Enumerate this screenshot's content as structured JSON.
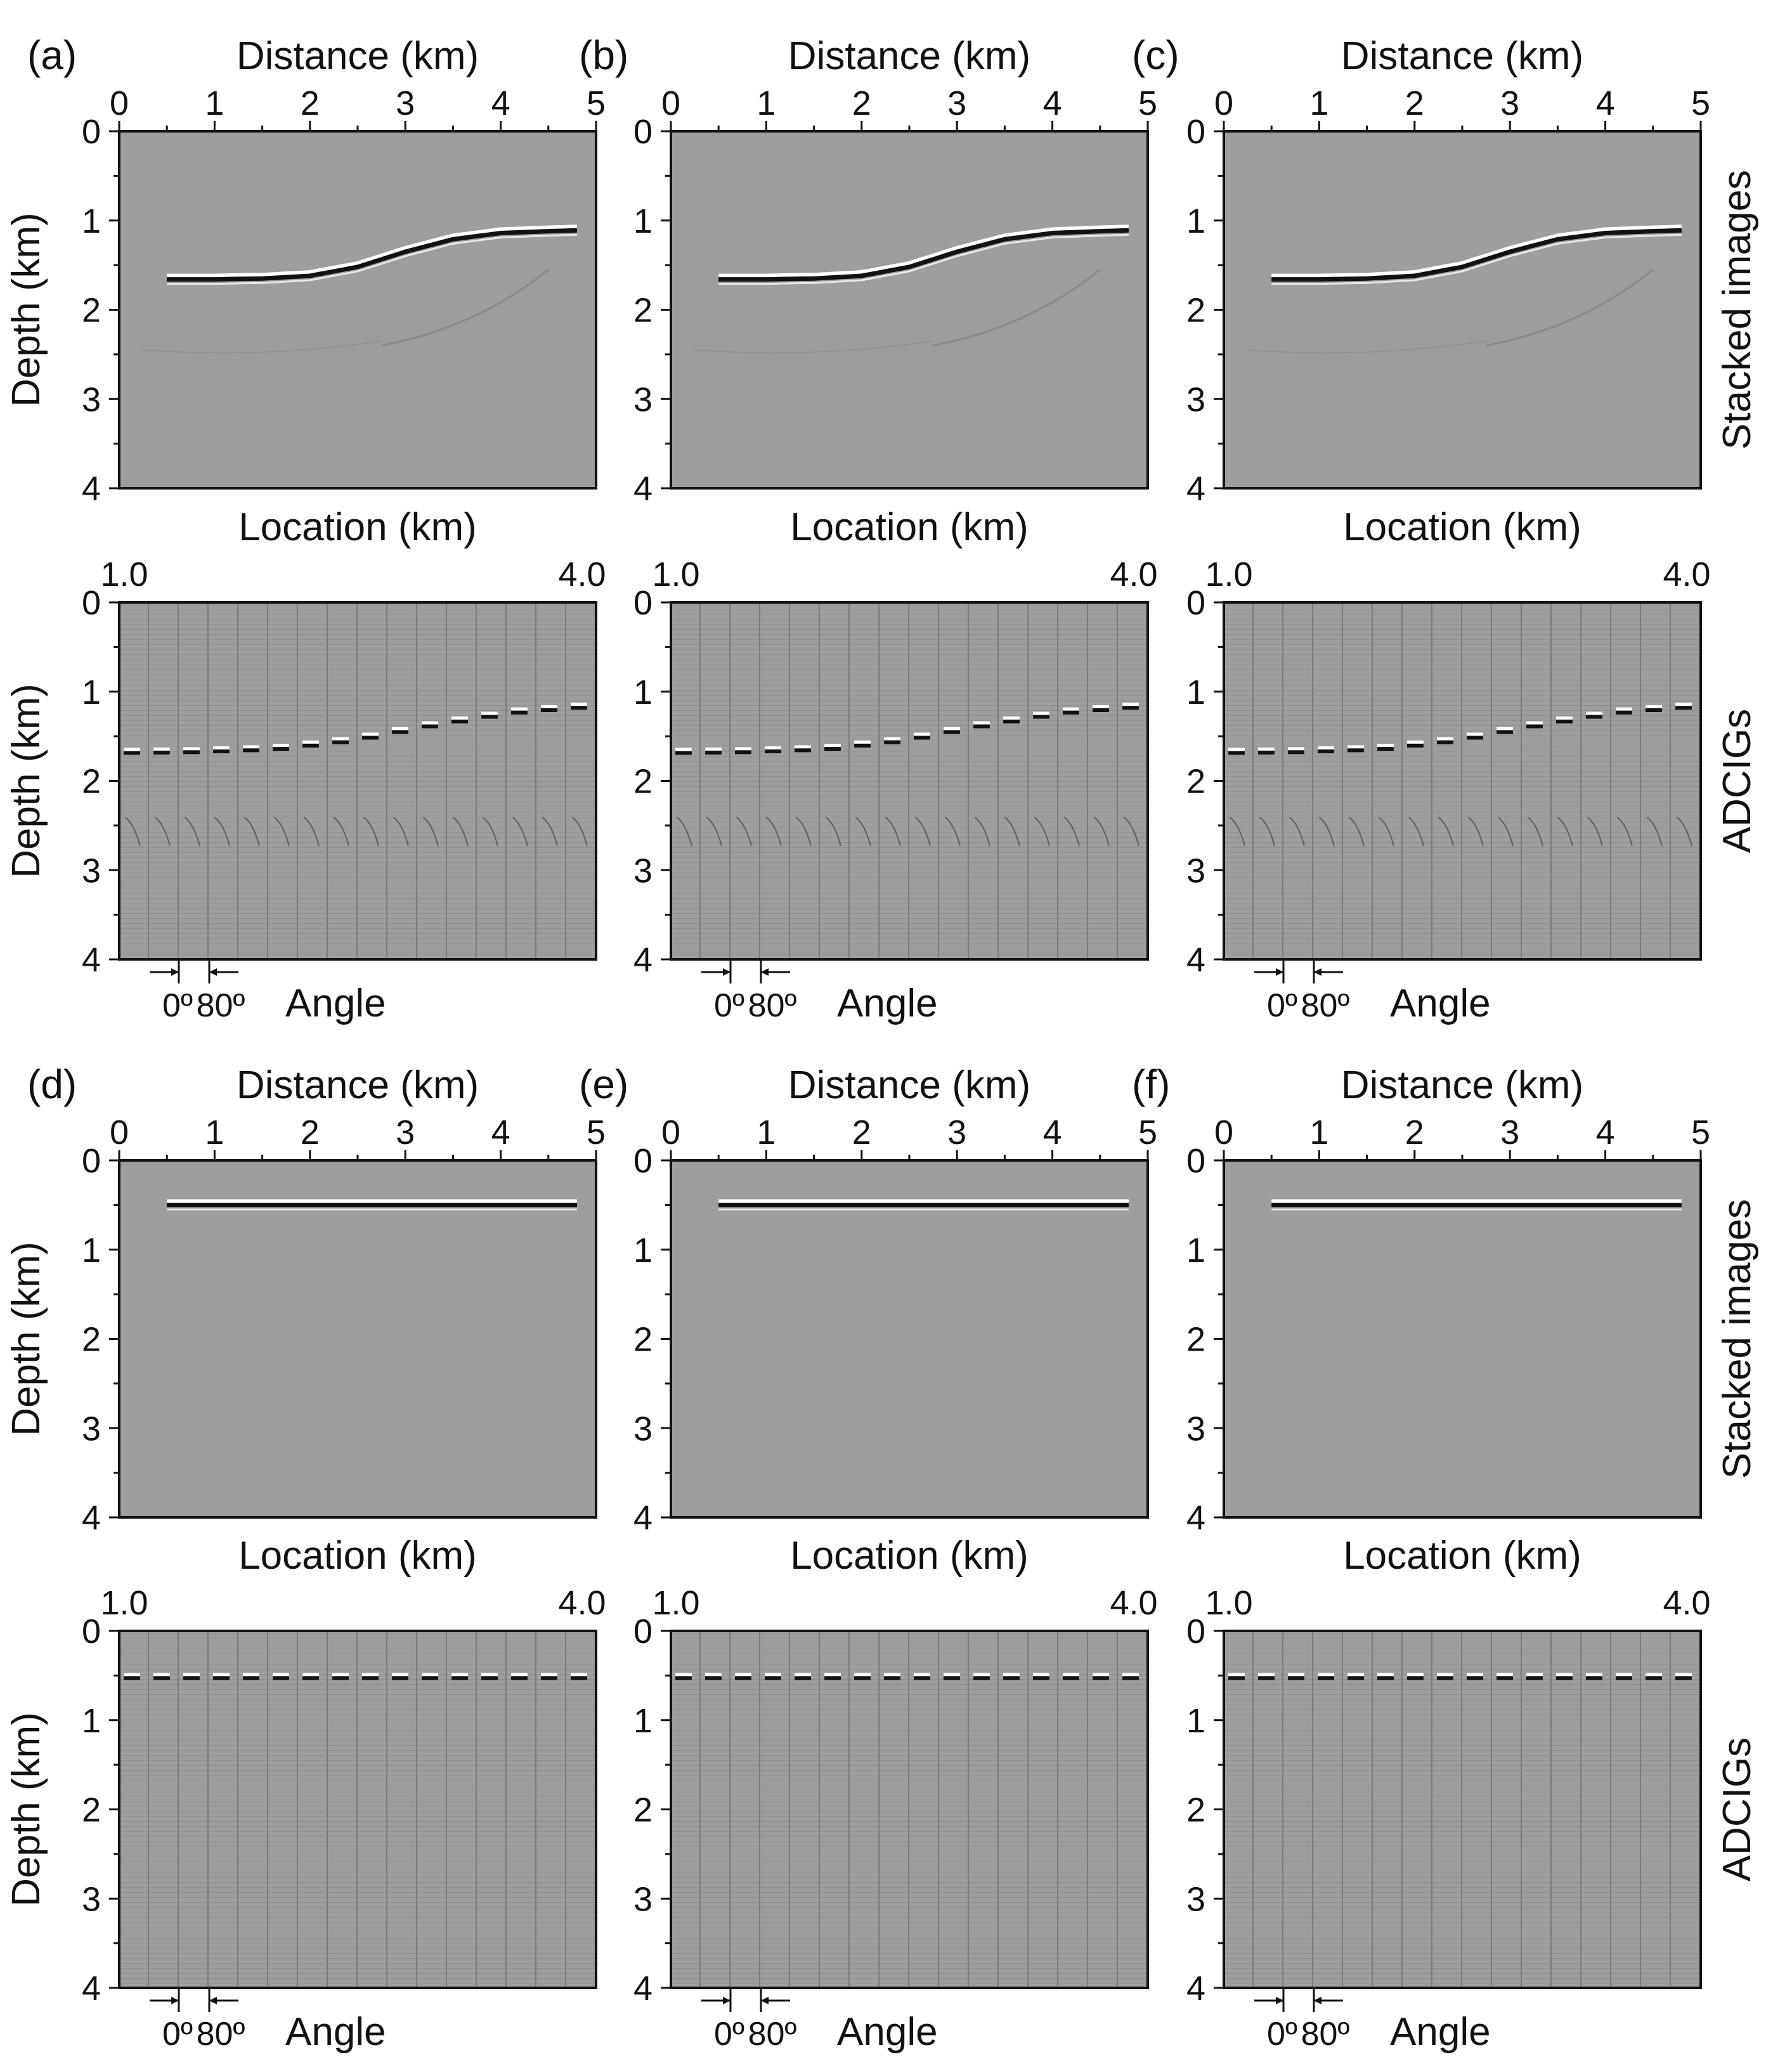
{
  "figure": {
    "rows": [
      {
        "type": "stacked",
        "panels": [
          "(a)",
          "(b)",
          "(c)"
        ],
        "side_label": "Stacked images"
      },
      {
        "type": "adcig",
        "side_label": "ADCIGs"
      },
      {
        "type": "stacked",
        "panels": [
          "(d)",
          "(e)",
          "(f)"
        ],
        "side_label": "Stacked images"
      },
      {
        "type": "adcig",
        "side_label": "ADCIGs"
      }
    ],
    "stacked": {
      "xlabel": "Distance (km)",
      "ylabel": "Depth (km)",
      "xticks": [
        "0",
        "1",
        "2",
        "3",
        "4",
        "5"
      ],
      "yticks": [
        "0",
        "1",
        "2",
        "3",
        "4"
      ]
    },
    "adcig": {
      "xlabel": "Location (km)",
      "ylabel": "Depth (km)",
      "xticks": [
        "1.0",
        "4.0"
      ],
      "yticks": [
        "0",
        "1",
        "2",
        "3",
        "4"
      ],
      "angle_label": "Angle",
      "angle_min": "0º",
      "angle_max": "80º"
    },
    "colors": {
      "background": "#9e9e9e",
      "frame": "#111111"
    }
  },
  "chart_data": {
    "type": "heatmap",
    "description_x_range_km": [
      0,
      5
    ],
    "depth_range_km": [
      0,
      4
    ],
    "adcig_location_range_km": [
      1.0,
      4.0
    ],
    "adcig_gather_count": 16,
    "angle_range_deg": [
      0,
      80
    ],
    "reflector_upper_model": {
      "x_km": [
        0.5,
        1.0,
        1.5,
        2.0,
        2.5,
        3.0,
        3.5,
        4.0,
        4.5,
        4.8
      ],
      "depth_km": [
        1.66,
        1.66,
        1.65,
        1.62,
        1.52,
        1.35,
        1.21,
        1.14,
        1.12,
        1.11
      ]
    },
    "reflector_lower_model": {
      "x_km": [
        0.5,
        4.8
      ],
      "depth_km": [
        0.5,
        0.5
      ]
    }
  }
}
